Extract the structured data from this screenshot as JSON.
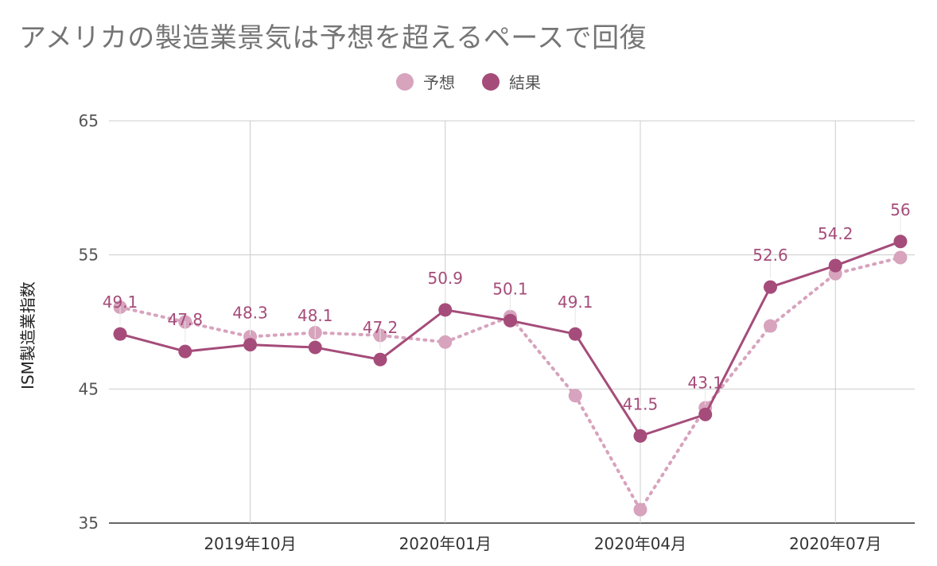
{
  "chart_data": {
    "type": "line",
    "title": "アメリカの製造業景気は予想を超えるペースで回復",
    "ylabel": "ISM製造業指数",
    "xlabel": "",
    "ylim": [
      35,
      65
    ],
    "yticks": [
      35,
      45,
      55,
      65
    ],
    "grid": true,
    "legend_position": "top-center",
    "x": [
      "2019-08",
      "2019-09",
      "2019-10",
      "2019-11",
      "2019-12",
      "2020-01",
      "2020-02",
      "2020-03",
      "2020-04",
      "2020-05",
      "2020-06",
      "2020-07",
      "2020-08"
    ],
    "xtick_labels": [
      {
        "x": "2019-10",
        "label": "2019年10月"
      },
      {
        "x": "2020-01",
        "label": "2020年01月"
      },
      {
        "x": "2020-04",
        "label": "2020年04月"
      },
      {
        "x": "2020-07",
        "label": "2020年07月"
      }
    ],
    "series": [
      {
        "name": "予想",
        "color": "#d7a3bd",
        "style": "dotted",
        "values": [
          51.1,
          50.0,
          48.9,
          49.2,
          49.0,
          48.5,
          50.4,
          44.5,
          36.0,
          43.6,
          49.7,
          53.6,
          54.8
        ]
      },
      {
        "name": "結果",
        "color": "#a54c7a",
        "style": "solid",
        "values": [
          49.1,
          47.8,
          48.3,
          48.1,
          47.2,
          50.9,
          50.1,
          49.1,
          41.5,
          43.1,
          52.6,
          54.2,
          56.0
        ],
        "data_labels": [
          "49.1",
          "47.8",
          "48.3",
          "48.1",
          "47.2",
          "50.9",
          "50.1",
          "49.1",
          "41.5",
          "43.1",
          "52.6",
          "54.2",
          "56"
        ]
      }
    ]
  }
}
